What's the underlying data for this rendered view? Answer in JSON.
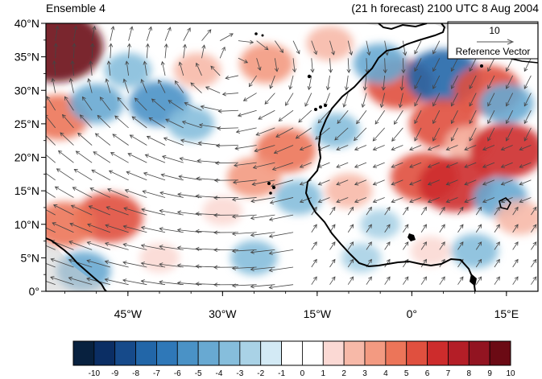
{
  "title_left": "Ensemble 4",
  "title_right": "(21 h forecast) 2100 UTC 8 Aug 2004",
  "map": {
    "lon_range": [
      -58,
      20
    ],
    "lat_range": [
      0,
      40
    ],
    "lat_ticks": [
      {
        "value": 40,
        "label": "40°N"
      },
      {
        "value": 35,
        "label": "35°N"
      },
      {
        "value": 30,
        "label": "30°N"
      },
      {
        "value": 25,
        "label": "25°N"
      },
      {
        "value": 20,
        "label": "20°N"
      },
      {
        "value": 15,
        "label": "15°N"
      },
      {
        "value": 10,
        "label": "10°N"
      },
      {
        "value": 5,
        "label": "5°N"
      },
      {
        "value": 0,
        "label": "0°"
      }
    ],
    "lon_ticks": [
      {
        "value": -45,
        "label": "45°W"
      },
      {
        "value": -30,
        "label": "30°W"
      },
      {
        "value": -15,
        "label": "15°W"
      },
      {
        "value": 0,
        "label": "0°"
      },
      {
        "value": 15,
        "label": "15°E"
      }
    ],
    "reference_vector": {
      "magnitude": "10",
      "label": "Reference Vector"
    }
  },
  "colorbar": {
    "labels": [
      "-10",
      "-9",
      "-8",
      "-7",
      "-6",
      "-5",
      "-4",
      "-3",
      "-2",
      "-1",
      "0",
      "1",
      "2",
      "3",
      "4",
      "5",
      "6",
      "7",
      "8",
      "9",
      "10"
    ],
    "colors": [
      "#08213f",
      "#0b2e64",
      "#164a8a",
      "#2266a8",
      "#2f78b8",
      "#4a92c6",
      "#68a9d2",
      "#86bedc",
      "#a9d2e6",
      "#d3eaf5",
      "#ffffff",
      "#ffffff",
      "#fbd9d4",
      "#f7b9a8",
      "#f39a81",
      "#ec7559",
      "#e0503f",
      "#cd2c2c",
      "#b41e27",
      "#921421",
      "#6b0a14"
    ]
  },
  "fields": {
    "anomalies": [
      {
        "lon": -56.5,
        "lat": 36.5,
        "value": 10
      },
      {
        "lon": -23,
        "lat": 34,
        "value": 4
      },
      {
        "lon": -34,
        "lat": 33,
        "value": 3
      },
      {
        "lon": -13,
        "lat": 37,
        "value": 3
      },
      {
        "lon": -2,
        "lat": 31,
        "value": 6
      },
      {
        "lon": 5,
        "lat": 32,
        "value": -7
      },
      {
        "lon": -5,
        "lat": 34,
        "value": -4
      },
      {
        "lon": 12,
        "lat": 30,
        "value": 6
      },
      {
        "lon": 15,
        "lat": 28,
        "value": -4
      },
      {
        "lon": 5,
        "lat": 25,
        "value": 6
      },
      {
        "lon": 9,
        "lat": 22,
        "value": 3
      },
      {
        "lon": 15,
        "lat": 21,
        "value": 7
      },
      {
        "lon": 2,
        "lat": 17,
        "value": 6
      },
      {
        "lon": 7,
        "lat": 16,
        "value": 7
      },
      {
        "lon": 14,
        "lat": 14,
        "value": -4
      },
      {
        "lon": 17,
        "lat": 11,
        "value": 3
      },
      {
        "lon": -20,
        "lat": 21,
        "value": 5
      },
      {
        "lon": -25,
        "lat": 17,
        "value": 4
      },
      {
        "lon": -18,
        "lat": 14,
        "value": -3
      },
      {
        "lon": -12,
        "lat": 24,
        "value": -3
      },
      {
        "lon": -48,
        "lat": 11,
        "value": 6
      },
      {
        "lon": -55,
        "lat": 10,
        "value": 5
      },
      {
        "lon": -56,
        "lat": 26,
        "value": 5
      },
      {
        "lon": -50,
        "lat": 28,
        "value": -4
      },
      {
        "lon": -40,
        "lat": 28,
        "value": -5
      },
      {
        "lon": -45,
        "lat": 33,
        "value": -3
      },
      {
        "lon": -35,
        "lat": 25,
        "value": -3
      },
      {
        "lon": -30,
        "lat": 12,
        "value": 2
      },
      {
        "lon": -25,
        "lat": 5,
        "value": -3
      },
      {
        "lon": -52,
        "lat": 3,
        "value": -4
      },
      {
        "lon": -40,
        "lat": 5,
        "value": 2
      },
      {
        "lon": -8,
        "lat": 5,
        "value": -2
      },
      {
        "lon": 3,
        "lat": 6,
        "value": 2
      },
      {
        "lon": -10,
        "lat": 15,
        "value": 3
      },
      {
        "lon": -5,
        "lat": 10,
        "value": -2
      },
      {
        "lon": 10,
        "lat": 6,
        "value": -3
      }
    ],
    "wind_center": {
      "lon": -28,
      "lat": 34
    }
  }
}
